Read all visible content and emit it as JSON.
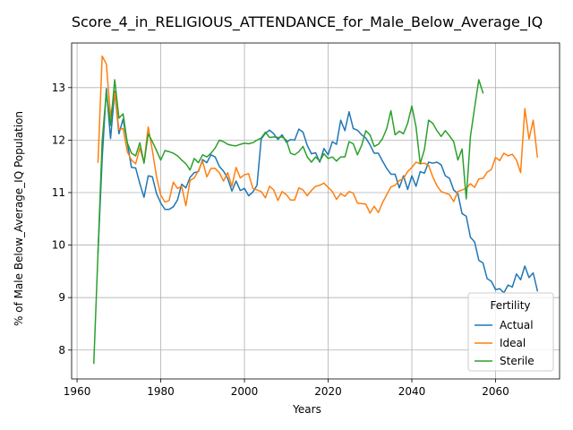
{
  "chart_data": {
    "type": "line",
    "title": "Score_4_in_RELIGIOUS_ATTENDANCE_for_Male_Below_Average_IQ",
    "xlabel": "Years",
    "ylabel": "% of Male Below_Average_IQ Population",
    "xlim": [
      1958.7,
      2075.3
    ],
    "ylim": [
      7.45,
      13.85
    ],
    "xticks": [
      1960,
      1980,
      2000,
      2020,
      2040,
      2060
    ],
    "yticks": [
      8,
      9,
      10,
      11,
      12,
      13
    ],
    "grid": true,
    "legend": {
      "title": "Fertility",
      "placement": "lower-right"
    },
    "series": [
      {
        "name": "Actual",
        "color": "#1f77b4",
        "x": [
          1965,
          1966,
          1967,
          1968,
          1969,
          1970,
          1971,
          1972,
          1973,
          1974,
          1975,
          1976,
          1977,
          1978,
          1979,
          1980,
          1981,
          1982,
          1983,
          1984,
          1985,
          1986,
          1987,
          1988,
          1989,
          1990,
          1991,
          1992,
          1993,
          1994,
          1995,
          1996,
          1997,
          1998,
          1999,
          2000,
          2001,
          2002,
          2003,
          2004,
          2005,
          2006,
          2007,
          2008,
          2009,
          2010,
          2011,
          2012,
          2013,
          2014,
          2015,
          2016,
          2017,
          2018,
          2019,
          2020,
          2021,
          2022,
          2023,
          2024,
          2025,
          2026,
          2027,
          2028,
          2029,
          2030,
          2031,
          2032,
          2033,
          2034,
          2035,
          2036,
          2037,
          2038,
          2039,
          2040,
          2041,
          2042,
          2043,
          2044,
          2045,
          2046,
          2047,
          2048,
          2049,
          2050,
          2051,
          2052,
          2053,
          2054,
          2055,
          2056,
          2057,
          2058,
          2059,
          2060,
          2061,
          2062,
          2063,
          2064,
          2065,
          2066,
          2067,
          2068,
          2069,
          2070
        ],
        "y": [
          9.85,
          11.65,
          12.98,
          12.03,
          12.93,
          12.12,
          12.4,
          11.95,
          11.48,
          11.47,
          11.17,
          10.91,
          11.32,
          11.3,
          10.98,
          10.8,
          10.68,
          10.68,
          10.73,
          10.86,
          11.16,
          11.09,
          11.29,
          11.38,
          11.4,
          11.63,
          11.57,
          11.72,
          11.68,
          11.5,
          11.41,
          11.27,
          11.03,
          11.22,
          11.04,
          11.08,
          10.94,
          11.01,
          11.14,
          12.02,
          12.13,
          12.19,
          12.12,
          12.01,
          12.1,
          11.96,
          12.01,
          12.0,
          12.21,
          12.15,
          11.9,
          11.74,
          11.76,
          11.58,
          11.84,
          11.72,
          11.97,
          11.92,
          12.38,
          12.18,
          12.54,
          12.22,
          12.19,
          12.1,
          12.04,
          11.91,
          11.75,
          11.75,
          11.6,
          11.46,
          11.35,
          11.35,
          11.09,
          11.32,
          11.06,
          11.32,
          11.12,
          11.4,
          11.37,
          11.58,
          11.56,
          11.58,
          11.53,
          11.32,
          11.27,
          11.05,
          10.98,
          10.6,
          10.55,
          10.15,
          10.06,
          9.71,
          9.66,
          9.36,
          9.31,
          9.15,
          9.17,
          9.09,
          9.24,
          9.2,
          9.45,
          9.34,
          9.6,
          9.38,
          9.47,
          9.13
        ]
      },
      {
        "name": "Ideal",
        "color": "#ff7f0e",
        "x": [
          1965,
          1966,
          1967,
          1968,
          1969,
          1970,
          1971,
          1972,
          1973,
          1974,
          1975,
          1976,
          1977,
          1978,
          1979,
          1980,
          1981,
          1982,
          1983,
          1984,
          1985,
          1986,
          1987,
          1988,
          1989,
          1990,
          1991,
          1992,
          1993,
          1994,
          1995,
          1996,
          1997,
          1998,
          1999,
          2000,
          2001,
          2002,
          2003,
          2004,
          2005,
          2006,
          2007,
          2008,
          2009,
          2010,
          2011,
          2012,
          2013,
          2014,
          2015,
          2016,
          2017,
          2018,
          2019,
          2020,
          2021,
          2022,
          2023,
          2024,
          2025,
          2026,
          2027,
          2028,
          2029,
          2030,
          2031,
          2032,
          2033,
          2034,
          2035,
          2036,
          2037,
          2038,
          2039,
          2040,
          2041,
          2042,
          2043,
          2044,
          2045,
          2046,
          2047,
          2048,
          2049,
          2050,
          2051,
          2052,
          2053,
          2054,
          2055,
          2056,
          2057,
          2058,
          2059,
          2060,
          2061,
          2062,
          2063,
          2064,
          2065,
          2066,
          2067,
          2068,
          2069,
          2070
        ],
        "y": [
          11.58,
          13.6,
          13.45,
          12.45,
          12.9,
          12.2,
          12.22,
          11.78,
          11.62,
          11.55,
          11.85,
          11.57,
          12.25,
          11.8,
          11.3,
          10.95,
          10.82,
          10.85,
          11.2,
          11.08,
          11.12,
          10.75,
          11.23,
          11.28,
          11.42,
          11.6,
          11.3,
          11.46,
          11.46,
          11.38,
          11.22,
          11.38,
          11.12,
          11.48,
          11.28,
          11.34,
          11.36,
          11.08,
          11.05,
          11.02,
          10.9,
          11.12,
          11.05,
          10.85,
          11.02,
          10.96,
          10.86,
          10.86,
          11.09,
          11.05,
          10.94,
          11.04,
          11.12,
          11.14,
          11.18,
          11.1,
          11.02,
          10.87,
          10.98,
          10.93,
          11.02,
          10.99,
          10.8,
          10.79,
          10.78,
          10.61,
          10.74,
          10.62,
          10.81,
          10.96,
          11.11,
          11.14,
          11.23,
          11.27,
          11.4,
          11.48,
          11.58,
          11.55,
          11.56,
          11.52,
          11.3,
          11.13,
          11.02,
          10.99,
          10.96,
          10.83,
          11.02,
          11.05,
          11.08,
          11.17,
          11.1,
          11.26,
          11.27,
          11.39,
          11.44,
          11.67,
          11.61,
          11.75,
          11.7,
          11.73,
          11.62,
          11.38,
          12.6,
          12.02,
          12.38,
          11.68
        ]
      },
      {
        "name": "Sterile",
        "color": "#2ca02c",
        "x": [
          1964,
          1965,
          1966,
          1967,
          1968,
          1969,
          1970,
          1971,
          1972,
          1973,
          1974,
          1975,
          1976,
          1977,
          1978,
          1979,
          1980,
          1981,
          1982,
          1983,
          1984,
          1985,
          1986,
          1987,
          1988,
          1989,
          1990,
          1991,
          1992,
          1993,
          1994,
          1995,
          1996,
          1997,
          1998,
          1999,
          2000,
          2001,
          2002,
          2003,
          2004,
          2005,
          2006,
          2007,
          2008,
          2009,
          2010,
          2011,
          2012,
          2013,
          2014,
          2015,
          2016,
          2017,
          2018,
          2019,
          2020,
          2021,
          2022,
          2023,
          2024,
          2025,
          2026,
          2027,
          2028,
          2029,
          2030,
          2031,
          2032,
          2033,
          2034,
          2035,
          2036,
          2037,
          2038,
          2039,
          2040,
          2041,
          2042,
          2043,
          2044,
          2045,
          2046,
          2047,
          2048,
          2049,
          2050,
          2051,
          2052,
          2053,
          2054,
          2055,
          2056,
          2057
        ],
        "y": [
          7.75,
          9.85,
          11.98,
          12.93,
          12.28,
          13.15,
          12.42,
          12.5,
          11.95,
          11.75,
          11.7,
          11.95,
          11.56,
          12.12,
          11.97,
          11.8,
          11.62,
          11.8,
          11.78,
          11.75,
          11.7,
          11.62,
          11.55,
          11.43,
          11.65,
          11.57,
          11.72,
          11.68,
          11.75,
          11.85,
          12.0,
          11.97,
          11.92,
          11.9,
          11.89,
          11.92,
          11.94,
          11.93,
          11.95,
          12.0,
          12.04,
          12.15,
          12.05,
          12.06,
          12.05,
          12.06,
          12.0,
          11.75,
          11.72,
          11.78,
          11.88,
          11.68,
          11.58,
          11.68,
          11.6,
          11.74,
          11.65,
          11.68,
          11.6,
          11.68,
          11.68,
          11.97,
          11.93,
          11.72,
          11.9,
          12.18,
          12.1,
          11.88,
          11.92,
          12.03,
          12.22,
          12.56,
          12.1,
          12.17,
          12.12,
          12.32,
          12.65,
          12.25,
          11.55,
          11.82,
          12.38,
          12.32,
          12.18,
          12.07,
          12.18,
          12.08,
          11.97,
          11.62,
          11.83,
          10.88,
          12.07,
          12.62,
          13.15,
          12.9
        ]
      }
    ]
  }
}
